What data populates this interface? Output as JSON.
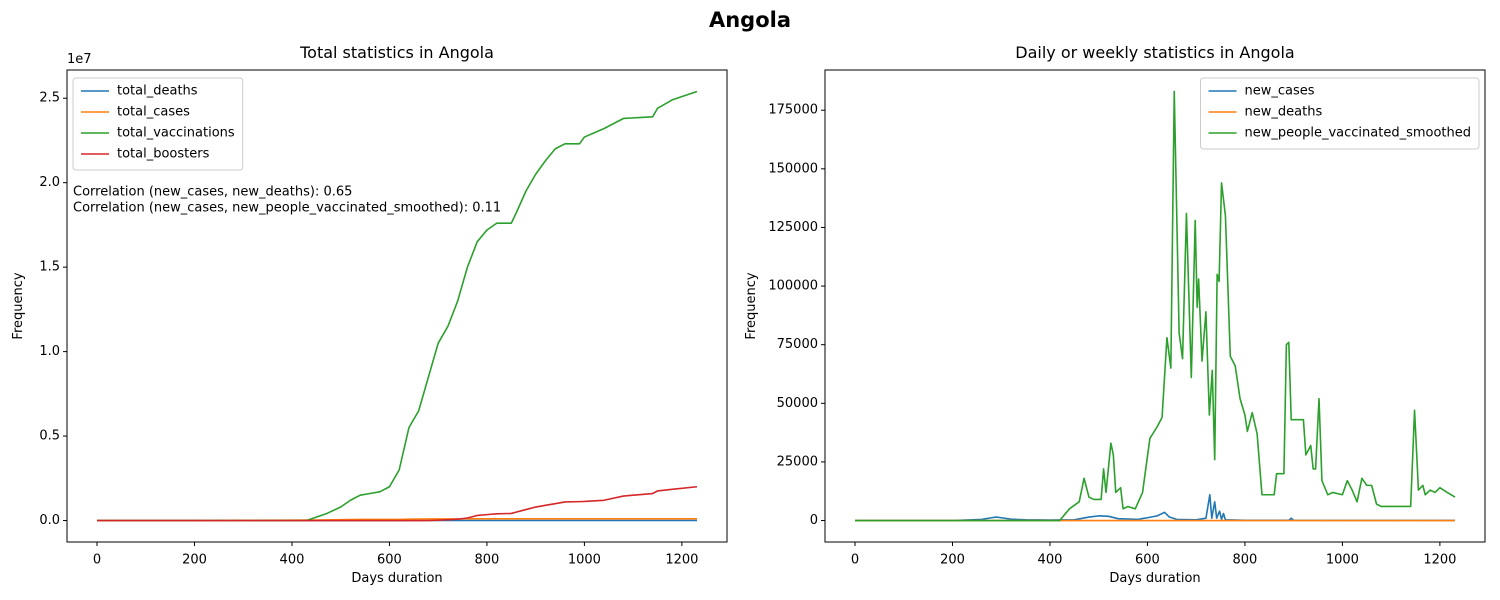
{
  "title": "Angola",
  "chart_data": [
    {
      "type": "line",
      "title": "Total statistics in Angola",
      "xlabel": "Days duration",
      "ylabel": "Frequency",
      "y_offset_label": "1e7",
      "legend": "upper left",
      "annotations": [
        "Correlation (new_cases, new_deaths): 0.65",
        "Correlation (new_cases, new_people_vaccinated_smoothed): 0.11"
      ],
      "xlim": [
        -61.55,
        1292.55
      ],
      "xticks": [
        0,
        200,
        400,
        600,
        800,
        1000,
        1200
      ],
      "ylim": [
        -1270000,
        26670000
      ],
      "yticks": [
        {
          "value": 0,
          "label": "0.0"
        },
        {
          "value": 5000000,
          "label": "0.5"
        },
        {
          "value": 10000000,
          "label": "1.0"
        },
        {
          "value": 15000000,
          "label": "1.5"
        },
        {
          "value": 20000000,
          "label": "2.0"
        },
        {
          "value": 25000000,
          "label": "2.5"
        }
      ],
      "x": [
        0,
        100,
        200,
        300,
        400,
        430,
        450,
        470,
        500,
        520,
        540,
        560,
        580,
        600,
        620,
        640,
        660,
        680,
        700,
        720,
        740,
        760,
        780,
        800,
        820,
        850,
        860,
        880,
        900,
        920,
        940,
        960,
        990,
        1000,
        1040,
        1080,
        1140,
        1150,
        1180,
        1231
      ],
      "series": [
        {
          "name": "total_deaths",
          "color": "#1f77b4",
          "values": [
            0,
            2,
            30,
            400,
            600,
            700,
            800,
            900,
            1100,
            1300,
            1500,
            1600,
            1650,
            1700,
            1750,
            1800,
            1850,
            1880,
            1890,
            1895,
            1900,
            1900,
            1900,
            1910,
            1920,
            1920,
            1920,
            1925,
            1930,
            1930,
            1930,
            1930,
            1930,
            1930,
            1930,
            1930,
            1933,
            1934,
            1935,
            1936
          ]
        },
        {
          "name": "total_cases",
          "color": "#ff7f0e",
          "values": [
            0,
            100,
            1500,
            15000,
            25000,
            28000,
            33000,
            40000,
            55000,
            62000,
            64000,
            65000,
            65500,
            66000,
            68000,
            80000,
            90000,
            95000,
            97000,
            98000,
            99000,
            100000,
            100500,
            101000,
            102000,
            102500,
            103000,
            103500,
            104000,
            104200,
            104400,
            104500,
            104600,
            104700,
            104800,
            104900,
            105000,
            105100,
            105200,
            105300
          ]
        },
        {
          "name": "total_vaccinations",
          "color": "#2ca02c",
          "values": [
            0,
            0,
            0,
            0,
            0,
            0,
            200000,
            400000,
            800000,
            1200000,
            1500000,
            1600000,
            1700000,
            2000000,
            3000000,
            5500000,
            6500000,
            8500000,
            10500000,
            11500000,
            13000000,
            15000000,
            16500000,
            17200000,
            17600000,
            17600000,
            18200000,
            19500000,
            20500000,
            21300000,
            22000000,
            22300000,
            22300000,
            22700000,
            23200000,
            23800000,
            23900000,
            24400000,
            24900000,
            25400000
          ]
        },
        {
          "name": "total_boosters",
          "color": "#d62728",
          "values": [
            0,
            0,
            0,
            0,
            0,
            0,
            0,
            0,
            0,
            0,
            0,
            0,
            0,
            0,
            0,
            0,
            0,
            0,
            20000,
            50000,
            80000,
            150000,
            300000,
            350000,
            400000,
            420000,
            500000,
            650000,
            800000,
            900000,
            1000000,
            1100000,
            1120000,
            1130000,
            1200000,
            1450000,
            1600000,
            1750000,
            1850000,
            2000000
          ]
        }
      ]
    },
    {
      "type": "line",
      "title": "Daily or weekly statistics in Angola",
      "xlabel": "Days duration",
      "ylabel": "Frequency",
      "legend": "upper right",
      "xlim": [
        -61.55,
        1292.55
      ],
      "xticks": [
        0,
        200,
        400,
        600,
        800,
        1000,
        1200
      ],
      "ylim": [
        -9150,
        192150
      ],
      "yticks": [
        0,
        25000,
        50000,
        75000,
        100000,
        125000,
        150000,
        175000
      ],
      "series": [
        {
          "name": "new_cases",
          "color": "#1f77b4",
          "x": [
            0,
            200,
            260,
            280,
            290,
            300,
            320,
            350,
            400,
            450,
            480,
            500,
            520,
            540,
            580,
            600,
            620,
            635,
            645,
            660,
            700,
            720,
            724,
            728,
            732,
            738,
            742,
            748,
            752,
            756,
            760,
            800,
            890,
            895,
            900,
            1231
          ],
          "values": [
            0,
            0,
            500,
            1200,
            1500,
            1200,
            600,
            300,
            200,
            300,
            1500,
            2000,
            1800,
            800,
            500,
            1200,
            2000,
            3500,
            1500,
            500,
            300,
            1000,
            6000,
            11000,
            1000,
            8000,
            1000,
            4000,
            500,
            3000,
            300,
            100,
            100,
            1000,
            100,
            50
          ]
        },
        {
          "name": "new_deaths",
          "color": "#ff7f0e",
          "x": [
            0,
            300,
            600,
            900,
            1231
          ],
          "values": [
            0,
            5,
            10,
            5,
            0
          ]
        },
        {
          "name": "new_people_vaccinated_smoothed",
          "color": "#2ca02c",
          "x": [
            0,
            420,
            440,
            460,
            470,
            480,
            490,
            505,
            510,
            515,
            525,
            530,
            535,
            545,
            550,
            560,
            575,
            590,
            605,
            620,
            630,
            640,
            648,
            655,
            665,
            672,
            680,
            690,
            698,
            702,
            705,
            712,
            720,
            727,
            733,
            738,
            743,
            747,
            752,
            760,
            765,
            770,
            780,
            790,
            800,
            805,
            815,
            825,
            835,
            860,
            865,
            880,
            885,
            890,
            895,
            920,
            925,
            935,
            940,
            945,
            952,
            958,
            970,
            980,
            1000,
            1010,
            1020,
            1030,
            1040,
            1050,
            1060,
            1070,
            1080,
            1140,
            1148,
            1156,
            1165,
            1170,
            1180,
            1190,
            1200,
            1215,
            1231
          ],
          "values": [
            0,
            0,
            5000,
            8000,
            18000,
            10000,
            9000,
            9000,
            22000,
            12000,
            33000,
            28000,
            12000,
            14000,
            5000,
            6000,
            5000,
            12000,
            35000,
            40000,
            44000,
            78000,
            65000,
            183000,
            80000,
            69000,
            131000,
            61000,
            128000,
            91000,
            103000,
            68000,
            89000,
            45000,
            64000,
            26000,
            105000,
            102000,
            144000,
            130000,
            100000,
            70000,
            66000,
            52000,
            45000,
            38000,
            46000,
            37000,
            11000,
            11000,
            20000,
            20000,
            75000,
            76000,
            43000,
            43000,
            28000,
            32000,
            22000,
            22000,
            52000,
            17000,
            11000,
            12000,
            11000,
            17000,
            13000,
            8000,
            18000,
            15000,
            15000,
            7000,
            6000,
            6000,
            47000,
            13000,
            15000,
            11000,
            13000,
            12000,
            14000,
            12000,
            10000
          ]
        }
      ]
    }
  ]
}
